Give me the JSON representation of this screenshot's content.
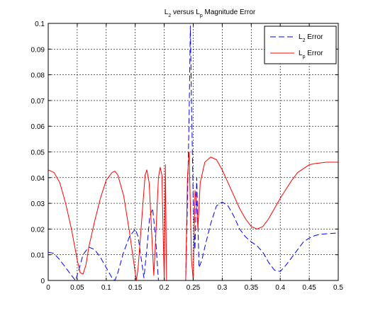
{
  "chart_data": {
    "type": "line",
    "title": {
      "main_a": "L",
      "sub_a": "2",
      "mid": " versus L",
      "sub_b": "p",
      "main_b": " Magnitude Error"
    },
    "xlim": [
      0,
      0.5
    ],
    "ylim": [
      0,
      0.1
    ],
    "x_ticks": [
      "0",
      "0.05",
      "0.1",
      "0.15",
      "0.2",
      "0.25",
      "0.3",
      "0.35",
      "0.4",
      "0.45",
      "0.5"
    ],
    "y_ticks": [
      "0",
      "0.01",
      "0.02",
      "0.03",
      "0.04",
      "0.05",
      "0.06",
      "0.07",
      "0.08",
      "0.09",
      "0.1"
    ],
    "grid": true,
    "legend": {
      "placement": "top-right",
      "entries": [
        {
          "base": "L",
          "sub": "2",
          "rest": " Error"
        },
        {
          "base": "L",
          "sub": "p",
          "rest": " Error"
        }
      ]
    },
    "series": [
      {
        "style": "dashed",
        "color": "#0000ff",
        "points": [
          [
            0,
            0.011
          ],
          [
            0.01,
            0.0105
          ],
          [
            0.02,
            0.008
          ],
          [
            0.03,
            0.005
          ],
          [
            0.04,
            0.002
          ],
          [
            0.047,
            0.0
          ],
          [
            0.052,
            0.0035
          ],
          [
            0.06,
            0.01
          ],
          [
            0.07,
            0.013
          ],
          [
            0.08,
            0.012
          ],
          [
            0.09,
            0.009
          ],
          [
            0.1,
            0.005
          ],
          [
            0.11,
            0.001
          ],
          [
            0.115,
            0.0
          ],
          [
            0.12,
            0.003
          ],
          [
            0.13,
            0.011
          ],
          [
            0.14,
            0.017
          ],
          [
            0.15,
            0.02
          ],
          [
            0.155,
            0.017
          ],
          [
            0.16,
            0.009
          ],
          [
            0.165,
            0.001
          ],
          [
            0.17,
            0.012
          ],
          [
            0.175,
            0.025
          ],
          [
            0.18,
            0.028
          ],
          [
            0.185,
            0.017
          ],
          [
            0.19,
            0.0
          ],
          [
            0.2,
            0.0
          ],
          [
            0.237,
            0.0
          ],
          [
            0.24,
            0.03
          ],
          [
            0.243,
            0.065
          ],
          [
            0.245,
            0.099
          ],
          [
            0.247,
            0.07
          ],
          [
            0.25,
            0.03
          ],
          [
            0.253,
            0.012
          ],
          [
            0.256,
            0.04
          ],
          [
            0.26,
            0.005
          ],
          [
            0.265,
            0.008
          ],
          [
            0.27,
            0.013
          ],
          [
            0.28,
            0.022
          ],
          [
            0.29,
            0.029
          ],
          [
            0.3,
            0.0305
          ],
          [
            0.31,
            0.029
          ],
          [
            0.32,
            0.025
          ],
          [
            0.33,
            0.02
          ],
          [
            0.34,
            0.017
          ],
          [
            0.35,
            0.015
          ],
          [
            0.36,
            0.0135
          ],
          [
            0.37,
            0.011
          ],
          [
            0.38,
            0.007
          ],
          [
            0.39,
            0.004
          ],
          [
            0.4,
            0.0035
          ],
          [
            0.41,
            0.006
          ],
          [
            0.42,
            0.009
          ],
          [
            0.43,
            0.012
          ],
          [
            0.44,
            0.015
          ],
          [
            0.45,
            0.0165
          ],
          [
            0.46,
            0.0175
          ],
          [
            0.47,
            0.018
          ],
          [
            0.5,
            0.0185
          ]
        ]
      },
      {
        "style": "solid",
        "color": "#ff0000",
        "points": [
          [
            0,
            0.043
          ],
          [
            0.01,
            0.042
          ],
          [
            0.02,
            0.038
          ],
          [
            0.03,
            0.03
          ],
          [
            0.04,
            0.02
          ],
          [
            0.05,
            0.008
          ],
          [
            0.055,
            0.003
          ],
          [
            0.06,
            0.0025
          ],
          [
            0.065,
            0.006
          ],
          [
            0.07,
            0.013
          ],
          [
            0.08,
            0.023
          ],
          [
            0.09,
            0.032
          ],
          [
            0.1,
            0.039
          ],
          [
            0.11,
            0.042
          ],
          [
            0.115,
            0.0425
          ],
          [
            0.12,
            0.041
          ],
          [
            0.13,
            0.033
          ],
          [
            0.14,
            0.019
          ],
          [
            0.15,
            0.003
          ],
          [
            0.152,
            0.0
          ],
          [
            0.155,
            0.005
          ],
          [
            0.16,
            0.02
          ],
          [
            0.167,
            0.041
          ],
          [
            0.17,
            0.043
          ],
          [
            0.174,
            0.038
          ],
          [
            0.178,
            0.02
          ],
          [
            0.182,
            0.002
          ],
          [
            0.186,
            0.02
          ],
          [
            0.19,
            0.04
          ],
          [
            0.193,
            0.044
          ],
          [
            0.196,
            0.041
          ],
          [
            0.198,
            0.02
          ],
          [
            0.2,
            0.0
          ],
          [
            0.202,
            0.045
          ],
          [
            0.204,
            0.0
          ],
          [
            0.237,
            0.0
          ],
          [
            0.24,
            0.04
          ],
          [
            0.243,
            0.05
          ],
          [
            0.247,
            0.008
          ],
          [
            0.25,
            0.0
          ],
          [
            0.253,
            0.035
          ],
          [
            0.256,
            0.03
          ],
          [
            0.258,
            0.02
          ],
          [
            0.262,
            0.038
          ],
          [
            0.27,
            0.046
          ],
          [
            0.28,
            0.048
          ],
          [
            0.29,
            0.047
          ],
          [
            0.3,
            0.043
          ],
          [
            0.31,
            0.038
          ],
          [
            0.32,
            0.033
          ],
          [
            0.33,
            0.028
          ],
          [
            0.34,
            0.024
          ],
          [
            0.35,
            0.021
          ],
          [
            0.36,
            0.02
          ],
          [
            0.37,
            0.021
          ],
          [
            0.38,
            0.024
          ],
          [
            0.39,
            0.028
          ],
          [
            0.4,
            0.032
          ],
          [
            0.41,
            0.0355
          ],
          [
            0.42,
            0.039
          ],
          [
            0.43,
            0.042
          ],
          [
            0.44,
            0.0435
          ],
          [
            0.45,
            0.045
          ],
          [
            0.46,
            0.0455
          ],
          [
            0.48,
            0.046
          ],
          [
            0.5,
            0.046
          ]
        ]
      }
    ]
  }
}
